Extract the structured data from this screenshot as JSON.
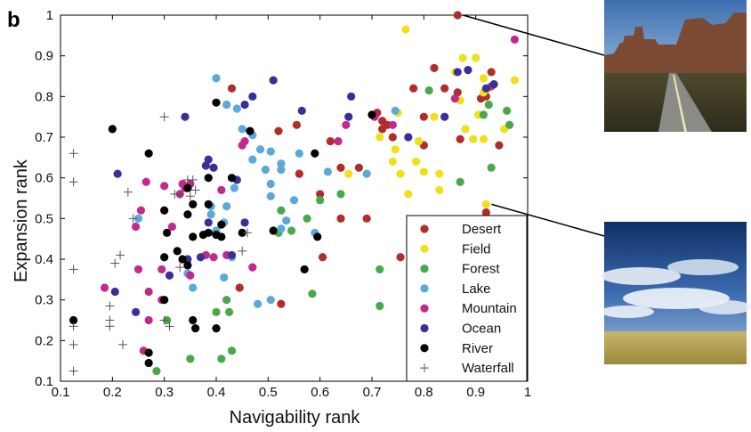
{
  "panel_label": "b",
  "chart_data": {
    "type": "scatter",
    "xlabel": "Navigability rank",
    "ylabel": "Expansion rank",
    "xlim": [
      0.1,
      1.0
    ],
    "ylim": [
      0.1,
      1.0
    ],
    "x_ticks": [
      "0.1",
      "0.2",
      "0.3",
      "0.4",
      "0.5",
      "0.6",
      "0.7",
      "0.8",
      "0.9",
      "1"
    ],
    "y_ticks": [
      "0.1",
      "0.2",
      "0.3",
      "0.4",
      "0.5",
      "0.6",
      "0.7",
      "0.8",
      "0.9",
      "1"
    ],
    "grid": false,
    "legend_position": "bottom-right",
    "series": [
      {
        "name": "Desert",
        "color": "#b22d2a",
        "marker": "dot",
        "points": [
          [
            0.865,
            1.0
          ],
          [
            0.43,
            0.82
          ],
          [
            0.52,
            0.715
          ],
          [
            0.555,
            0.73
          ],
          [
            0.62,
            0.69
          ],
          [
            0.675,
            0.625
          ],
          [
            0.64,
            0.625
          ],
          [
            0.71,
            0.76
          ],
          [
            0.72,
            0.74
          ],
          [
            0.73,
            0.73
          ],
          [
            0.74,
            0.7
          ],
          [
            0.8,
            0.75
          ],
          [
            0.82,
            0.87
          ],
          [
            0.84,
            0.82
          ],
          [
            0.865,
            0.81
          ],
          [
            0.87,
            0.695
          ],
          [
            0.91,
            0.795
          ],
          [
            0.92,
            0.8
          ],
          [
            0.93,
            0.86
          ],
          [
            0.945,
            0.68
          ],
          [
            0.8,
            0.68
          ],
          [
            0.78,
            0.82
          ],
          [
            0.72,
            0.72
          ],
          [
            0.56,
            0.61
          ],
          [
            0.6,
            0.56
          ],
          [
            0.64,
            0.5
          ],
          [
            0.69,
            0.5
          ],
          [
            0.605,
            0.405
          ],
          [
            0.755,
            0.405
          ],
          [
            0.525,
            0.29
          ],
          [
            0.445,
            0.33
          ],
          [
            0.92,
            0.515
          ]
        ]
      },
      {
        "name": "Field",
        "color": "#f0e01c",
        "marker": "dot",
        "points": [
          [
            0.765,
            0.965
          ],
          [
            0.86,
            0.86
          ],
          [
            0.875,
            0.895
          ],
          [
            0.9,
            0.895
          ],
          [
            0.915,
            0.845
          ],
          [
            0.915,
            0.81
          ],
          [
            0.925,
            0.82
          ],
          [
            0.975,
            0.84
          ],
          [
            0.905,
            0.755
          ],
          [
            0.88,
            0.72
          ],
          [
            0.895,
            0.695
          ],
          [
            0.915,
            0.695
          ],
          [
            0.955,
            0.72
          ],
          [
            0.87,
            0.79
          ],
          [
            0.82,
            0.75
          ],
          [
            0.79,
            0.69
          ],
          [
            0.75,
            0.76
          ],
          [
            0.745,
            0.67
          ],
          [
            0.715,
            0.7
          ],
          [
            0.74,
            0.64
          ],
          [
            0.755,
            0.61
          ],
          [
            0.785,
            0.64
          ],
          [
            0.8,
            0.615
          ],
          [
            0.83,
            0.61
          ],
          [
            0.83,
            0.57
          ],
          [
            0.77,
            0.56
          ],
          [
            0.655,
            0.61
          ],
          [
            0.92,
            0.535
          ]
        ]
      },
      {
        "name": "Forest",
        "color": "#48a84a",
        "marker": "dot",
        "points": [
          [
            0.81,
            0.815
          ],
          [
            0.925,
            0.78
          ],
          [
            0.96,
            0.765
          ],
          [
            0.915,
            0.755
          ],
          [
            0.965,
            0.73
          ],
          [
            0.93,
            0.625
          ],
          [
            0.87,
            0.59
          ],
          [
            0.64,
            0.56
          ],
          [
            0.6,
            0.545
          ],
          [
            0.525,
            0.52
          ],
          [
            0.575,
            0.5
          ],
          [
            0.545,
            0.47
          ],
          [
            0.52,
            0.465
          ],
          [
            0.715,
            0.375
          ],
          [
            0.585,
            0.315
          ],
          [
            0.42,
            0.3
          ],
          [
            0.4,
            0.27
          ],
          [
            0.425,
            0.27
          ],
          [
            0.305,
            0.25
          ],
          [
            0.715,
            0.285
          ],
          [
            0.35,
            0.155
          ],
          [
            0.41,
            0.155
          ],
          [
            0.43,
            0.175
          ],
          [
            0.285,
            0.125
          ]
        ]
      },
      {
        "name": "Lake",
        "color": "#5aa9d8",
        "marker": "dot",
        "points": [
          [
            0.4,
            0.845
          ],
          [
            0.42,
            0.78
          ],
          [
            0.44,
            0.77
          ],
          [
            0.45,
            0.72
          ],
          [
            0.47,
            0.705
          ],
          [
            0.485,
            0.67
          ],
          [
            0.505,
            0.665
          ],
          [
            0.525,
            0.635
          ],
          [
            0.56,
            0.66
          ],
          [
            0.47,
            0.645
          ],
          [
            0.495,
            0.62
          ],
          [
            0.525,
            0.62
          ],
          [
            0.505,
            0.585
          ],
          [
            0.55,
            0.545
          ],
          [
            0.505,
            0.555
          ],
          [
            0.535,
            0.495
          ],
          [
            0.525,
            0.475
          ],
          [
            0.435,
            0.575
          ],
          [
            0.42,
            0.53
          ],
          [
            0.39,
            0.53
          ],
          [
            0.39,
            0.51
          ],
          [
            0.415,
            0.49
          ],
          [
            0.4,
            0.47
          ],
          [
            0.43,
            0.405
          ],
          [
            0.415,
            0.355
          ],
          [
            0.345,
            0.365
          ],
          [
            0.355,
            0.33
          ],
          [
            0.48,
            0.29
          ],
          [
            0.505,
            0.3
          ],
          [
            0.25,
            0.5
          ],
          [
            0.59,
            0.465
          ],
          [
            0.615,
            0.615
          ],
          [
            0.69,
            0.61
          ],
          [
            0.745,
            0.765
          ]
        ]
      },
      {
        "name": "Mountain",
        "color": "#c1298d",
        "marker": "dot",
        "points": [
          [
            0.975,
            0.94
          ],
          [
            0.93,
            0.825
          ],
          [
            0.86,
            0.795
          ],
          [
            0.74,
            0.73
          ],
          [
            0.705,
            0.75
          ],
          [
            0.65,
            0.73
          ],
          [
            0.635,
            0.69
          ],
          [
            0.455,
            0.69
          ],
          [
            0.45,
            0.68
          ],
          [
            0.335,
            0.585
          ],
          [
            0.33,
            0.56
          ],
          [
            0.34,
            0.575
          ],
          [
            0.35,
            0.585
          ],
          [
            0.3,
            0.58
          ],
          [
            0.265,
            0.59
          ],
          [
            0.41,
            0.57
          ],
          [
            0.245,
            0.48
          ],
          [
            0.255,
            0.52
          ],
          [
            0.315,
            0.48
          ],
          [
            0.38,
            0.41
          ],
          [
            0.395,
            0.405
          ],
          [
            0.47,
            0.38
          ],
          [
            0.42,
            0.41
          ],
          [
            0.25,
            0.375
          ],
          [
            0.295,
            0.375
          ],
          [
            0.185,
            0.33
          ],
          [
            0.27,
            0.32
          ],
          [
            0.27,
            0.25
          ],
          [
            0.295,
            0.3
          ],
          [
            0.26,
            0.175
          ],
          [
            0.35,
            0.36
          ]
        ]
      },
      {
        "name": "Ocean",
        "color": "#3a2f9a",
        "marker": "dot",
        "points": [
          [
            0.92,
            0.82
          ],
          [
            0.935,
            0.83
          ],
          [
            0.865,
            0.86
          ],
          [
            0.885,
            0.865
          ],
          [
            0.84,
            0.75
          ],
          [
            0.77,
            0.7
          ],
          [
            0.66,
            0.8
          ],
          [
            0.655,
            0.75
          ],
          [
            0.565,
            0.765
          ],
          [
            0.51,
            0.84
          ],
          [
            0.47,
            0.8
          ],
          [
            0.455,
            0.78
          ],
          [
            0.44,
            0.595
          ],
          [
            0.395,
            0.625
          ],
          [
            0.385,
            0.645
          ],
          [
            0.38,
            0.63
          ],
          [
            0.34,
            0.75
          ],
          [
            0.21,
            0.61
          ],
          [
            0.205,
            0.32
          ],
          [
            0.245,
            0.27
          ],
          [
            0.385,
            0.49
          ],
          [
            0.43,
            0.41
          ],
          [
            0.455,
            0.49
          ],
          [
            0.37,
            0.405
          ],
          [
            0.31,
            0.36
          ],
          [
            0.345,
            0.4
          ]
        ]
      },
      {
        "name": "River",
        "color": "#000000",
        "marker": "dot",
        "points": [
          [
            0.7,
            0.755
          ],
          [
            0.59,
            0.66
          ],
          [
            0.43,
            0.6
          ],
          [
            0.465,
            0.715
          ],
          [
            0.4,
            0.785
          ],
          [
            0.345,
            0.51
          ],
          [
            0.355,
            0.535
          ],
          [
            0.385,
            0.535
          ],
          [
            0.345,
            0.575
          ],
          [
            0.385,
            0.6
          ],
          [
            0.27,
            0.66
          ],
          [
            0.2,
            0.72
          ],
          [
            0.3,
            0.52
          ],
          [
            0.305,
            0.465
          ],
          [
            0.355,
            0.455
          ],
          [
            0.375,
            0.46
          ],
          [
            0.4,
            0.46
          ],
          [
            0.41,
            0.455
          ],
          [
            0.385,
            0.465
          ],
          [
            0.41,
            0.485
          ],
          [
            0.45,
            0.465
          ],
          [
            0.51,
            0.47
          ],
          [
            0.595,
            0.455
          ],
          [
            0.57,
            0.375
          ],
          [
            0.325,
            0.42
          ],
          [
            0.345,
            0.385
          ],
          [
            0.3,
            0.405
          ],
          [
            0.335,
            0.4
          ],
          [
            0.4,
            0.23
          ],
          [
            0.3,
            0.3
          ],
          [
            0.355,
            0.25
          ],
          [
            0.27,
            0.17
          ],
          [
            0.27,
            0.145
          ],
          [
            0.125,
            0.25
          ],
          [
            0.36,
            0.23
          ]
        ]
      },
      {
        "name": "Waterfall",
        "color": "#555555",
        "marker": "plus",
        "points": [
          [
            0.125,
            0.66
          ],
          [
            0.125,
            0.59
          ],
          [
            0.23,
            0.565
          ],
          [
            0.24,
            0.5
          ],
          [
            0.3,
            0.75
          ],
          [
            0.345,
            0.595
          ],
          [
            0.355,
            0.595
          ],
          [
            0.36,
            0.57
          ],
          [
            0.35,
            0.555
          ],
          [
            0.33,
            0.56
          ],
          [
            0.32,
            0.56
          ],
          [
            0.46,
            0.465
          ],
          [
            0.45,
            0.42
          ],
          [
            0.215,
            0.41
          ],
          [
            0.205,
            0.39
          ],
          [
            0.125,
            0.375
          ],
          [
            0.195,
            0.285
          ],
          [
            0.195,
            0.25
          ],
          [
            0.195,
            0.235
          ],
          [
            0.125,
            0.235
          ],
          [
            0.125,
            0.19
          ],
          [
            0.22,
            0.19
          ],
          [
            0.3,
            0.25
          ],
          [
            0.31,
            0.235
          ],
          [
            0.125,
            0.125
          ],
          [
            0.33,
            0.38
          ]
        ]
      }
    ],
    "legend": [
      "Desert",
      "Field",
      "Forest",
      "Lake",
      "Mountain",
      "Ocean",
      "River",
      "Waterfall"
    ],
    "annotations": [
      {
        "target_point": [
          0.865,
          1.0
        ],
        "image": "desert-road-photo"
      },
      {
        "target_point": [
          0.92,
          0.535
        ],
        "image": "field-sky-photo"
      }
    ]
  }
}
